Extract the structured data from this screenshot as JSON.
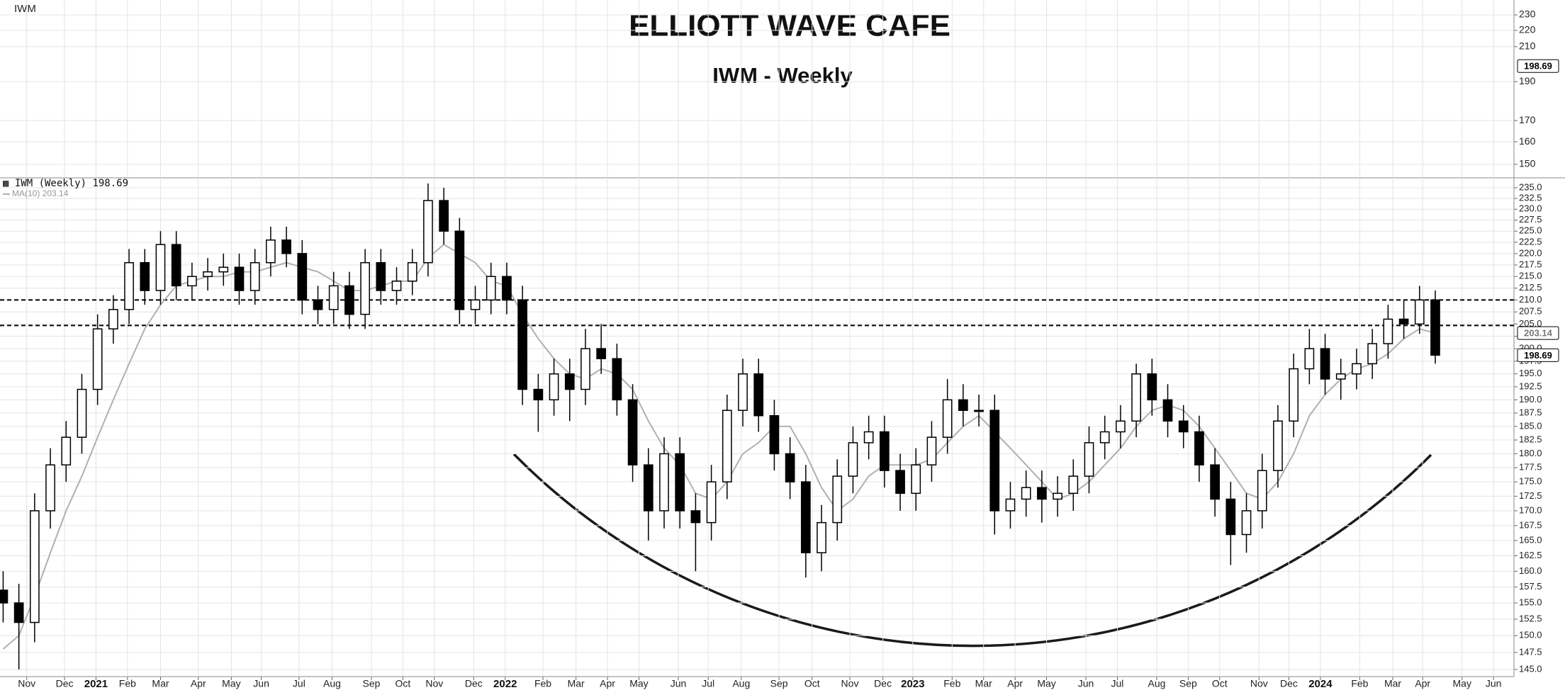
{
  "chart_data": [
    {
      "type": "panel",
      "title": "ELLIOTT WAVE CAFE",
      "subtitle": "IWM - Weekly",
      "label": "IWM",
      "log_scale": true,
      "grid": true,
      "ylim": [
        144.6,
        240
      ],
      "yticks": [
        230,
        220,
        210,
        190,
        170,
        160,
        150
      ]
    },
    {
      "type": "candlestick",
      "series_name": "IWM (Weekly)",
      "ma_name": "MA(10)",
      "up_color": "#ffffff",
      "down_color": "#000000",
      "ma_color": "#b0b0b0",
      "log_scale": true,
      "grid": true,
      "xlim": [
        -0.2,
        96
      ],
      "ylim": [
        143.97,
        237.35
      ],
      "xticks": [
        {
          "value": 1.5,
          "label": "Nov"
        },
        {
          "value": 3.9,
          "label": "Dec"
        },
        {
          "value": 5.9,
          "label": "2021"
        },
        {
          "value": 7.9,
          "label": "Feb"
        },
        {
          "value": 10,
          "label": "Mar"
        },
        {
          "value": 12.4,
          "label": "Apr"
        },
        {
          "value": 14.5,
          "label": "May"
        },
        {
          "value": 16.4,
          "label": "Jun"
        },
        {
          "value": 18.8,
          "label": "Jul"
        },
        {
          "value": 20.9,
          "label": "Aug"
        },
        {
          "value": 23.4,
          "label": "Sep"
        },
        {
          "value": 25.4,
          "label": "Oct"
        },
        {
          "value": 27.4,
          "label": "Nov"
        },
        {
          "value": 29.9,
          "label": "Dec"
        },
        {
          "value": 31.9,
          "label": "2022"
        },
        {
          "value": 34.3,
          "label": "Feb"
        },
        {
          "value": 36.4,
          "label": "Mar"
        },
        {
          "value": 38.4,
          "label": "Apr"
        },
        {
          "value": 40.4,
          "label": "May"
        },
        {
          "value": 42.9,
          "label": "Jun"
        },
        {
          "value": 44.8,
          "label": "Jul"
        },
        {
          "value": 46.9,
          "label": "Aug"
        },
        {
          "value": 49.3,
          "label": "Sep"
        },
        {
          "value": 51.4,
          "label": "Oct"
        },
        {
          "value": 53.8,
          "label": "Nov"
        },
        {
          "value": 55.9,
          "label": "Dec"
        },
        {
          "value": 57.8,
          "label": "2023"
        },
        {
          "value": 60.3,
          "label": "Feb"
        },
        {
          "value": 62.3,
          "label": "Mar"
        },
        {
          "value": 64.3,
          "label": "Apr"
        },
        {
          "value": 66.3,
          "label": "May"
        },
        {
          "value": 68.8,
          "label": "Jun"
        },
        {
          "value": 70.8,
          "label": "Jul"
        },
        {
          "value": 73.3,
          "label": "Aug"
        },
        {
          "value": 75.3,
          "label": "Sep"
        },
        {
          "value": 77.3,
          "label": "Oct"
        },
        {
          "value": 79.8,
          "label": "Nov"
        },
        {
          "value": 81.7,
          "label": "Dec"
        },
        {
          "value": 83.7,
          "label": "2024"
        },
        {
          "value": 86.2,
          "label": "Feb"
        },
        {
          "value": 88.3,
          "label": "Mar"
        },
        {
          "value": 90.2,
          "label": "Apr"
        },
        {
          "value": 92.7,
          "label": "May"
        },
        {
          "value": 94.7,
          "label": "Jun"
        }
      ],
      "yticks": [
        {
          "value": 145,
          "label": "145.0"
        },
        {
          "value": 147.5,
          "label": "147.5"
        },
        {
          "value": 150,
          "label": "150.0"
        },
        {
          "value": 152.5,
          "label": "152.5"
        },
        {
          "value": 155,
          "label": "155.0"
        },
        {
          "value": 157.5,
          "label": "157.5"
        },
        {
          "value": 160,
          "label": "160.0"
        },
        {
          "value": 162.5,
          "label": "162.5"
        },
        {
          "value": 165,
          "label": "165.0"
        },
        {
          "value": 167.5,
          "label": "167.5"
        },
        {
          "value": 170,
          "label": "170.0"
        },
        {
          "value": 172.5,
          "label": "172.5"
        },
        {
          "value": 175,
          "label": "175.0"
        },
        {
          "value": 177.5,
          "label": "177.5"
        },
        {
          "value": 180,
          "label": "180.0"
        },
        {
          "value": 182.5,
          "label": "182.5"
        },
        {
          "value": 185,
          "label": "185.0"
        },
        {
          "value": 187.5,
          "label": "187.5"
        },
        {
          "value": 190,
          "label": "190.0"
        },
        {
          "value": 192.5,
          "label": "192.5"
        },
        {
          "value": 195,
          "label": "195.0"
        },
        {
          "value": 197.5,
          "label": "197.5"
        },
        {
          "value": 200,
          "label": "200.0"
        },
        {
          "value": 202.5,
          "label": "202.5"
        },
        {
          "value": 205,
          "label": "205.0"
        },
        {
          "value": 207.5,
          "label": "207.5"
        },
        {
          "value": 210,
          "label": "210.0"
        },
        {
          "value": 212.5,
          "label": "212.5"
        },
        {
          "value": 215,
          "label": "215.0"
        },
        {
          "value": 217.5,
          "label": "217.5"
        },
        {
          "value": 220,
          "label": "220.0"
        },
        {
          "value": 222.5,
          "label": "222.5"
        },
        {
          "value": 225,
          "label": "225.0"
        },
        {
          "value": 227.5,
          "label": "227.5"
        },
        {
          "value": 230,
          "label": "230.0"
        },
        {
          "value": 232.5,
          "label": "232.5"
        },
        {
          "value": 235,
          "label": "235.0"
        }
      ],
      "horizontal_lines": [
        210,
        204.7
      ],
      "open": [
        157,
        155,
        152,
        170,
        178,
        183,
        192,
        204,
        208,
        218,
        212,
        222,
        213,
        215,
        216,
        217,
        212,
        218,
        223,
        220,
        210,
        208,
        213,
        207,
        218,
        212,
        214,
        218,
        232,
        225,
        208,
        210,
        215,
        210,
        192,
        190,
        195,
        192,
        200,
        198,
        190,
        178,
        170,
        180,
        170,
        168,
        175,
        188,
        195,
        187,
        180,
        175,
        163,
        168,
        176,
        182,
        184,
        177,
        173,
        178,
        183,
        190,
        188,
        188,
        170,
        172,
        174,
        172,
        173,
        176,
        182,
        184,
        186,
        195,
        190,
        186,
        184,
        178,
        172,
        166,
        170,
        177,
        186,
        196,
        200,
        194,
        195,
        197,
        201,
        206,
        205,
        210
      ],
      "high": [
        160,
        158,
        173,
        181,
        186,
        195,
        207,
        211,
        221,
        221,
        225,
        225,
        218,
        219,
        220,
        220,
        221,
        226,
        226,
        223,
        213,
        216,
        216,
        221,
        221,
        217,
        221,
        236,
        235,
        228,
        213,
        218,
        218,
        213,
        195,
        198,
        198,
        204,
        205,
        201,
        193,
        181,
        183,
        183,
        173,
        178,
        191,
        198,
        198,
        190,
        183,
        178,
        171,
        179,
        185,
        187,
        187,
        180,
        181,
        186,
        194,
        193,
        191,
        191,
        175,
        177,
        177,
        176,
        179,
        185,
        187,
        189,
        197,
        198,
        193,
        189,
        187,
        181,
        175,
        173,
        180,
        189,
        199,
        204,
        203,
        198,
        200,
        204,
        209,
        210,
        213,
        212
      ],
      "low": [
        152,
        145,
        149,
        167,
        175,
        180,
        189,
        201,
        205,
        209,
        209,
        210,
        210,
        212,
        213,
        209,
        209,
        215,
        217,
        207,
        205,
        205,
        204,
        204,
        209,
        209,
        211,
        215,
        222,
        205,
        205,
        207,
        207,
        189,
        184,
        187,
        186,
        189,
        195,
        187,
        175,
        165,
        167,
        167,
        160,
        165,
        172,
        185,
        184,
        177,
        172,
        159,
        160,
        165,
        173,
        179,
        174,
        170,
        170,
        175,
        180,
        185,
        185,
        166,
        167,
        169,
        168,
        169,
        170,
        173,
        179,
        181,
        183,
        187,
        183,
        181,
        175,
        169,
        161,
        163,
        167,
        174,
        183,
        193,
        191,
        190,
        192,
        194,
        198,
        202,
        203,
        197
      ],
      "close": [
        155,
        152,
        170,
        178,
        183,
        192,
        204,
        208,
        218,
        212,
        222,
        213,
        215,
        216,
        217,
        212,
        218,
        223,
        220,
        210,
        208,
        213,
        207,
        218,
        212,
        214,
        218,
        232,
        225,
        208,
        210,
        215,
        210,
        192,
        190,
        195,
        192,
        200,
        198,
        190,
        178,
        170,
        180,
        170,
        168,
        175,
        188,
        195,
        187,
        180,
        175,
        163,
        168,
        176,
        182,
        184,
        177,
        173,
        178,
        183,
        190,
        188,
        188,
        170,
        172,
        174,
        172,
        173,
        176,
        182,
        184,
        186,
        195,
        190,
        186,
        184,
        178,
        172,
        166,
        170,
        177,
        186,
        196,
        200,
        194,
        195,
        197,
        201,
        206,
        205,
        210,
        198.69
      ],
      "ma": [
        148,
        150,
        156,
        163,
        170,
        176,
        183,
        190,
        197,
        204,
        209,
        213,
        214,
        215,
        215,
        216,
        216,
        217,
        218,
        217,
        216,
        214,
        212,
        212,
        213,
        214,
        214,
        219,
        222,
        220,
        218,
        214,
        213,
        207,
        202,
        198,
        195,
        194,
        196,
        195,
        192,
        186,
        181,
        178,
        173,
        172,
        175,
        180,
        182,
        185,
        185,
        180,
        174,
        170,
        172,
        176,
        178,
        178,
        178,
        179,
        182,
        185,
        187,
        184,
        181,
        178,
        175,
        172,
        173,
        175,
        178,
        181,
        185,
        188,
        189,
        188,
        185,
        181,
        177,
        173,
        172,
        175,
        180,
        187,
        191,
        194,
        196,
        197,
        199,
        202,
        204,
        203.14
      ]
    }
  ]
}
